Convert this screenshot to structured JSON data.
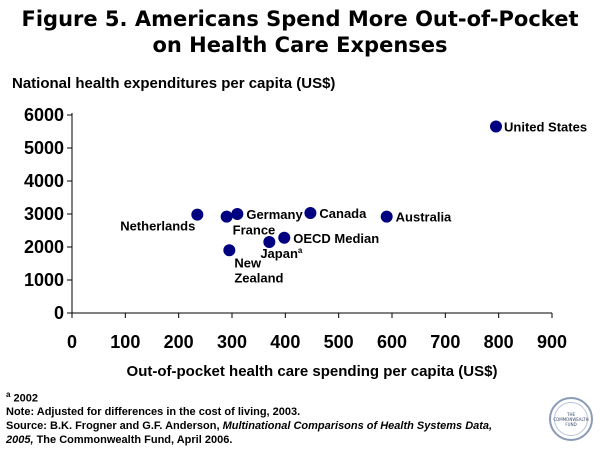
{
  "title_line1": "Figure 5. Americans Spend More Out-of-Pocket",
  "title_line2": "on Health Care Expenses",
  "footnote_marker": "a",
  "footnote_text": " 2002",
  "note_line": "Note: Adjusted for differences in the cost of living, 2003.",
  "source_prefix": "Source: B.K. Frogner and G.F. Anderson, ",
  "source_italic": "Multinational Comparisons of Health Systems Data,",
  "source_italic_year": "2005,",
  "source_suffix": " The Commonwealth Fund, April 2006.",
  "logo_text": "THE COMMONWEALTH FUND",
  "chart_data": {
    "type": "scatter",
    "ylabel": "National health expenditures per capita (US$)",
    "xlabel": "Out-of-pocket health care spending per capita (US$)",
    "xlim": [
      0,
      900
    ],
    "ylim": [
      0,
      6000
    ],
    "xticks": [
      "0",
      "100",
      "200",
      "300",
      "400",
      "500",
      "600",
      "700",
      "800",
      "900"
    ],
    "yticks": [
      "0",
      "1000",
      "2000",
      "3000",
      "4000",
      "5000",
      "6000"
    ],
    "grid": false,
    "marker_color": "#000080",
    "points": [
      {
        "label": "United States",
        "x": 795,
        "y": 5650,
        "sup": ""
      },
      {
        "label": "Netherlands",
        "x": 235,
        "y": 2980,
        "sup": ""
      },
      {
        "label": "France",
        "x": 290,
        "y": 2920,
        "sup": ""
      },
      {
        "label": "Germany",
        "x": 310,
        "y": 3000,
        "sup": ""
      },
      {
        "label": "New Zealand",
        "x": 295,
        "y": 1900,
        "sup": ""
      },
      {
        "label": "Japan",
        "x": 370,
        "y": 2150,
        "sup": "a"
      },
      {
        "label": "OECD Median",
        "x": 398,
        "y": 2280,
        "sup": ""
      },
      {
        "label": "Canada",
        "x": 447,
        "y": 3030,
        "sup": ""
      },
      {
        "label": "Australia",
        "x": 590,
        "y": 2920,
        "sup": ""
      }
    ]
  }
}
